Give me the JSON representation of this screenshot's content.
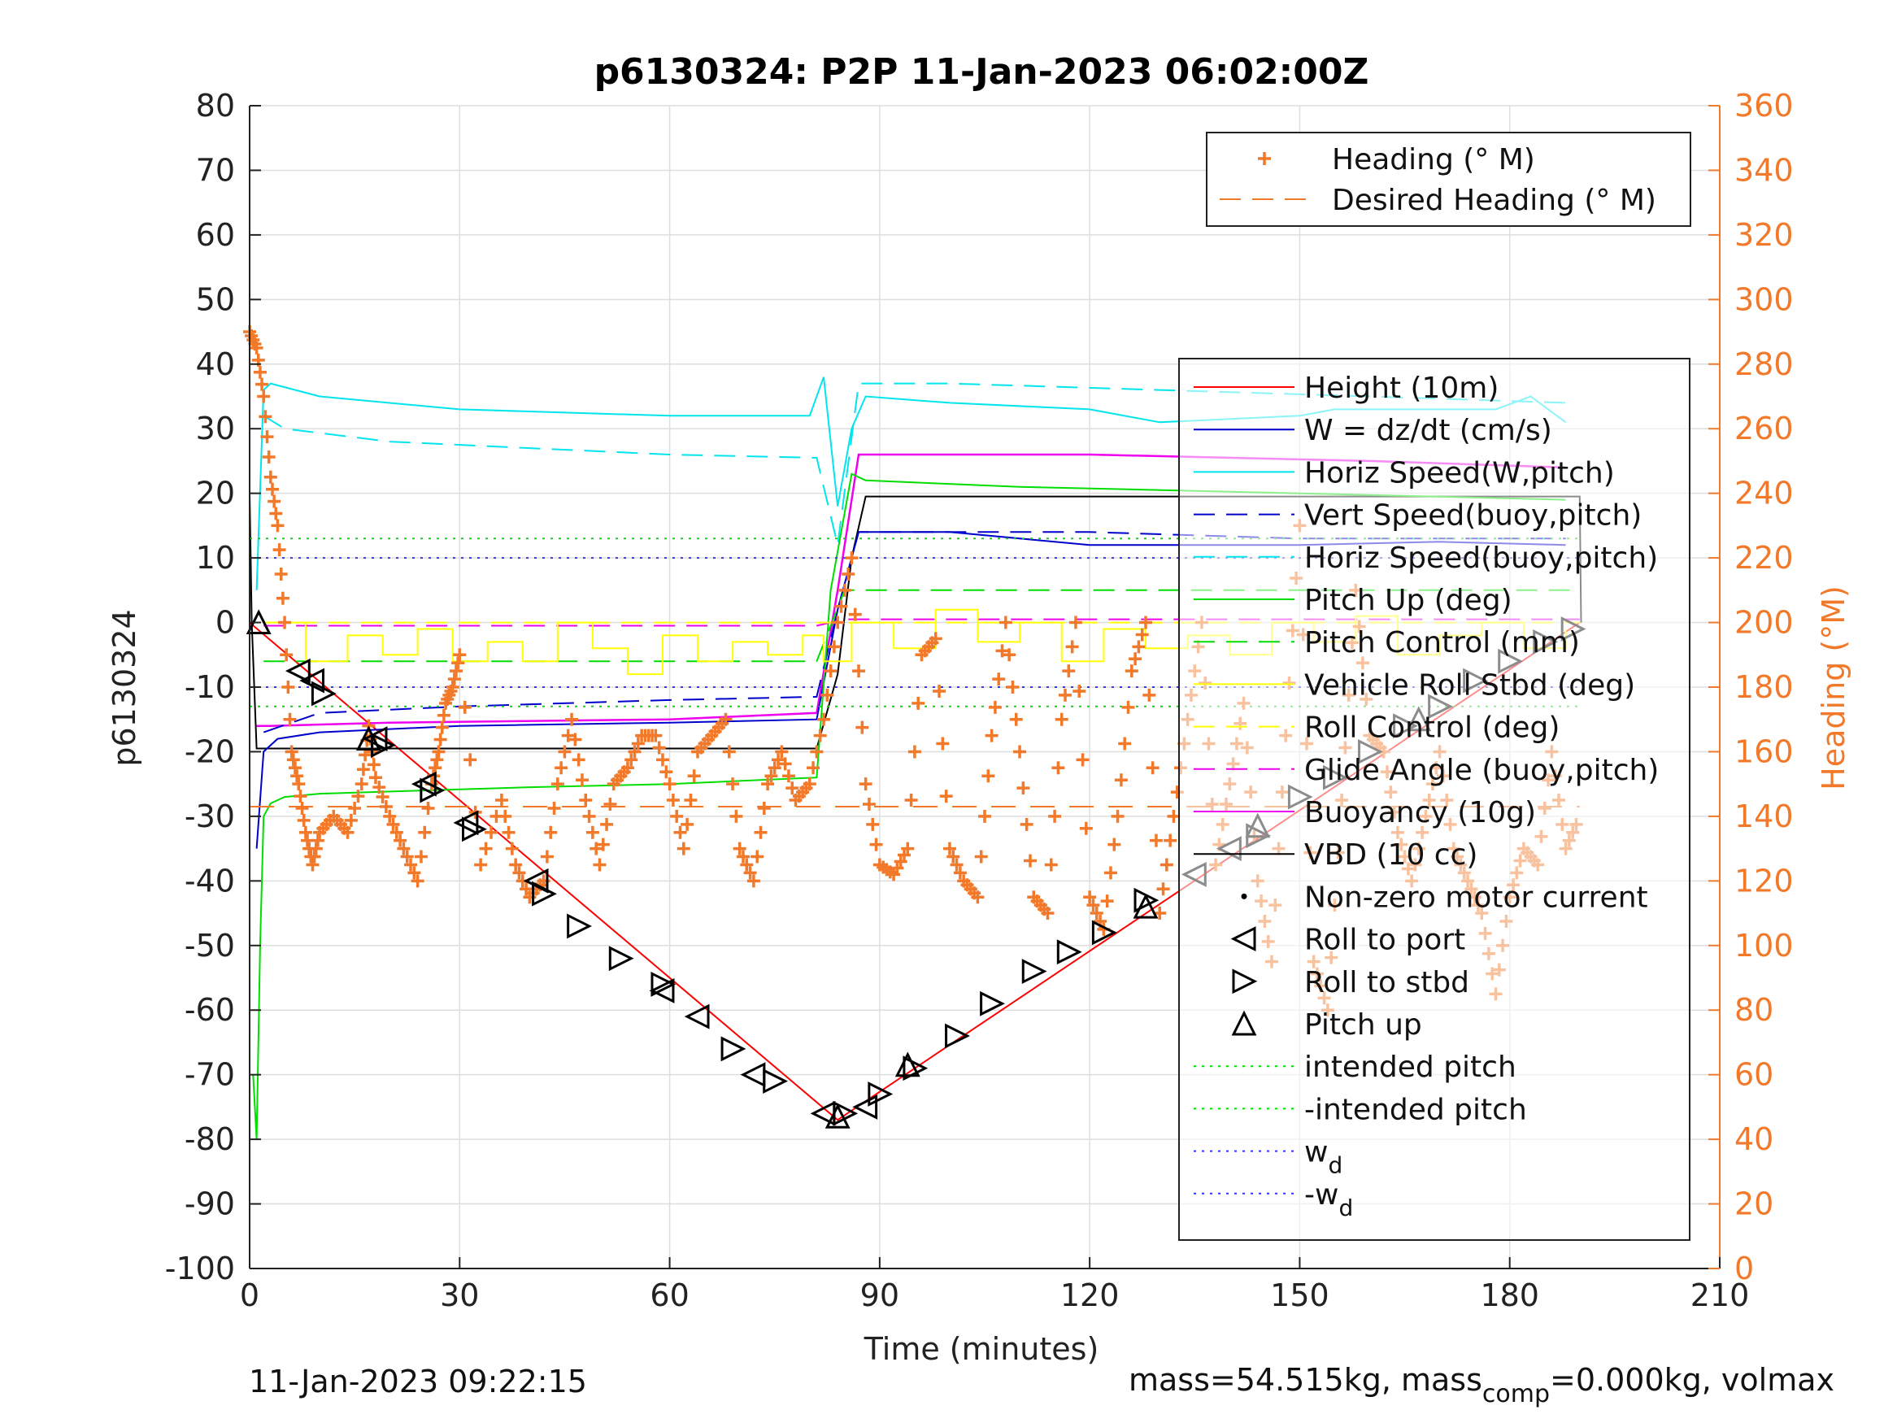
{
  "title": "p6130324: P2P 11-Jan-2023 06:02:00Z",
  "footer_left": "11-Jan-2023 09:22:15",
  "footer_right_parts": [
    "mass=54.515kg, mass",
    "comp",
    "=0.000kg, volmax"
  ],
  "colors": {
    "heading": "#f2792a",
    "height": "#ff0000",
    "w": "#0000cc",
    "horiz": "#00e5ee",
    "pitch": "#00dd00",
    "roll": "#ffff00",
    "glide": "#ee00ee",
    "vbd": "#000000",
    "wd": "#3333ff"
  },
  "chart_data": {
    "type": "line",
    "title": "p6130324: P2P 11-Jan-2023 06:02:00Z",
    "xlabel": "Time (minutes)",
    "ylabel": "p6130324",
    "y2label": "Heading (°M)",
    "xlim": [
      0,
      210
    ],
    "ylim": [
      -100,
      80
    ],
    "y2lim": [
      0,
      360
    ],
    "xticks": [
      0,
      30,
      60,
      90,
      120,
      150,
      180,
      210
    ],
    "yticks": [
      -100,
      -90,
      -80,
      -70,
      -60,
      -50,
      -40,
      -30,
      -20,
      -10,
      0,
      10,
      20,
      30,
      40,
      50,
      60,
      70,
      80
    ],
    "y2ticks": [
      0,
      20,
      40,
      60,
      80,
      100,
      120,
      140,
      160,
      180,
      200,
      220,
      240,
      260,
      280,
      300,
      320,
      340,
      360
    ],
    "grid": true,
    "legend_heading": [
      {
        "label": "Heading (° M)",
        "style": "plus",
        "color": "#f2792a"
      },
      {
        "label": "Desired Heading (° M)",
        "style": "dash",
        "color": "#f2792a"
      }
    ],
    "legend_main": [
      {
        "label": "Height (10m)",
        "style": "solid",
        "color": "#ff0000"
      },
      {
        "label": "W = dz/dt (cm/s)",
        "style": "solid",
        "color": "#0000cc"
      },
      {
        "label": "Horiz Speed(W,pitch)",
        "style": "solid",
        "color": "#00e5ee"
      },
      {
        "label": "Vert Speed(buoy,pitch)",
        "style": "dash",
        "color": "#0000cc"
      },
      {
        "label": "Horiz Speed(buoy,pitch)",
        "style": "dash",
        "color": "#00e5ee"
      },
      {
        "label": "Pitch Up (deg)",
        "style": "solid",
        "color": "#00dd00"
      },
      {
        "label": "Pitch Control (mm)",
        "style": "dash",
        "color": "#00dd00"
      },
      {
        "label": "Vehicle Roll Stbd (deg)",
        "style": "solid",
        "color": "#ffff00"
      },
      {
        "label": "Roll Control (deg)",
        "style": "dash",
        "color": "#ffff00"
      },
      {
        "label": "Glide Angle (buoy,pitch)",
        "style": "dash",
        "color": "#ee00ee"
      },
      {
        "label": "Buoyancy (10g)",
        "style": "solid",
        "color": "#ee00ee"
      },
      {
        "label": "VBD (10 cc)",
        "style": "solid",
        "color": "#000000"
      },
      {
        "label": "Non-zero motor current",
        "style": "dot",
        "color": "#000000"
      },
      {
        "label": "Roll to port",
        "style": "tri-left",
        "color": "#000000"
      },
      {
        "label": "Roll to stbd",
        "style": "tri-right",
        "color": "#000000"
      },
      {
        "label": "Pitch up",
        "style": "tri-up",
        "color": "#000000"
      },
      {
        "label": "intended pitch",
        "style": "dotted",
        "color": "#00dd00"
      },
      {
        "label": "-intended pitch",
        "style": "dotted",
        "color": "#00dd00"
      },
      {
        "label": "w",
        "sub": "d",
        "style": "dotted",
        "color": "#3333ff"
      },
      {
        "label": "-w",
        "sub": "d",
        "style": "dotted",
        "color": "#3333ff"
      }
    ],
    "series": [
      {
        "name": "Height (10m)",
        "axis": "left",
        "x": [
          0,
          84,
          190
        ],
        "y": [
          0,
          -77,
          0
        ]
      },
      {
        "name": "VBD (10 cc)",
        "axis": "left",
        "x": [
          0,
          0.3,
          1,
          81,
          84,
          86,
          88,
          190,
          190.2
        ],
        "y": [
          20,
          0,
          -19.5,
          -19.5,
          -8,
          10,
          19.5,
          19.5,
          0
        ]
      },
      {
        "name": "Buoyancy (10g)",
        "axis": "left",
        "x": [
          1,
          3,
          20,
          60,
          81,
          84,
          87,
          120,
          160,
          188
        ],
        "y": [
          -16,
          -16,
          -15.5,
          -15,
          -14,
          5,
          26,
          26,
          25,
          24
        ]
      },
      {
        "name": "W = dz/dt (cm/s)",
        "axis": "left",
        "x": [
          1,
          2,
          4,
          10,
          30,
          60,
          81,
          84,
          87,
          100,
          120,
          150,
          170,
          188
        ],
        "y": [
          -35,
          -20,
          -18,
          -17,
          -16,
          -15.5,
          -15,
          2,
          14,
          14,
          12,
          12,
          12.5,
          12
        ]
      },
      {
        "name": "Vert Speed(buoy,pitch)",
        "axis": "left",
        "x": [
          2,
          10,
          30,
          60,
          81,
          84,
          87,
          120,
          150,
          188
        ],
        "y": [
          -17,
          -14,
          -13,
          -12,
          -11.5,
          2,
          14,
          14,
          13,
          13
        ]
      },
      {
        "name": "Horiz Speed(W,pitch)",
        "axis": "left",
        "x": [
          1,
          2,
          3,
          10,
          30,
          60,
          80,
          82,
          84,
          86,
          88,
          100,
          120,
          130,
          150,
          155,
          170,
          178,
          183,
          188
        ],
        "y": [
          5,
          36,
          37,
          35,
          33,
          32,
          32,
          38,
          18,
          30,
          35,
          34,
          33,
          31,
          32,
          33,
          33,
          33,
          35,
          31
        ]
      },
      {
        "name": "Horiz Speed(buoy,pitch)",
        "axis": "left",
        "x": [
          2,
          5,
          20,
          40,
          60,
          81,
          84,
          87,
          100,
          130,
          160,
          188
        ],
        "y": [
          32,
          30,
          28,
          27,
          26,
          25.5,
          12,
          37,
          37,
          36,
          35,
          34
        ]
      },
      {
        "name": "Pitch Up (deg)",
        "axis": "left",
        "x": [
          0.5,
          1,
          1.5,
          2,
          3,
          5,
          10,
          40,
          60,
          81,
          83,
          86,
          88,
          110,
          150,
          188
        ],
        "y": [
          -70,
          -80,
          -50,
          -30,
          -28,
          -27,
          -26.5,
          -25.5,
          -25,
          -24,
          5,
          23,
          22,
          21,
          20,
          19
        ]
      },
      {
        "name": "Pitch Control (mm)",
        "axis": "left",
        "x": [
          2,
          81,
          85,
          190
        ],
        "y": [
          -6,
          -6,
          5,
          5
        ]
      },
      {
        "name": "Glide Angle (buoy,pitch)",
        "axis": "left",
        "x": [
          2,
          81,
          85,
          190
        ],
        "y": [
          -0.5,
          -0.5,
          0.5,
          0.5
        ]
      },
      {
        "name": "Vehicle Roll Stbd (deg)",
        "axis": "left",
        "x": [
          2,
          8,
          14,
          19,
          24,
          29,
          34,
          39,
          44,
          49,
          54,
          59,
          64,
          69,
          74,
          79,
          82,
          86,
          92,
          98,
          104,
          110,
          116,
          122,
          128,
          134,
          140,
          146,
          152,
          158,
          164,
          170,
          176,
          182,
          188
        ],
        "y": [
          0,
          -6,
          -2,
          -5,
          -1,
          -6,
          -3,
          -6,
          0,
          -4,
          -8,
          -2,
          -6,
          -3,
          -5,
          -2,
          -6,
          0,
          -4,
          2,
          -3,
          0,
          -6,
          -1,
          -4,
          -2,
          -5,
          0,
          -3,
          1,
          -5,
          -2,
          0,
          -4,
          -1
        ]
      },
      {
        "name": "Roll Control (deg)",
        "axis": "left",
        "x": [
          2,
          190
        ],
        "y": [
          0,
          0
        ]
      },
      {
        "name": "intended pitch",
        "axis": "left",
        "x": [
          0,
          190
        ],
        "y": [
          13,
          13
        ]
      },
      {
        "name": "-intended pitch",
        "axis": "left",
        "x": [
          0,
          190
        ],
        "y": [
          -13,
          -13
        ]
      },
      {
        "name": "w_d",
        "axis": "left",
        "x": [
          0,
          190
        ],
        "y": [
          10,
          10
        ]
      },
      {
        "name": "-w_d",
        "axis": "left",
        "x": [
          0,
          190
        ],
        "y": [
          -10,
          -10
        ]
      },
      {
        "name": "Desired Heading (° M)",
        "axis": "right",
        "x": [
          0,
          190
        ],
        "y": [
          143,
          143
        ]
      },
      {
        "name": "Heading (° M)",
        "axis": "right",
        "x": [
          0,
          1,
          2,
          3,
          4,
          5,
          6,
          7,
          8,
          9,
          10,
          12,
          14,
          16,
          17,
          18,
          20,
          22,
          24,
          26,
          27,
          28,
          29,
          30,
          33,
          36,
          38,
          40,
          42,
          44,
          46,
          48,
          50,
          52,
          54,
          56,
          58,
          60,
          62,
          64,
          66,
          68,
          70,
          72,
          74,
          76,
          78,
          80,
          82,
          84,
          86,
          88,
          90,
          92,
          94,
          96,
          98,
          100,
          102,
          104,
          106,
          108,
          110,
          112,
          114,
          116,
          118,
          120,
          122,
          124,
          126,
          128,
          130,
          132,
          134,
          136,
          138,
          140,
          142,
          144,
          146,
          148,
          150,
          152,
          154,
          156,
          158,
          160,
          162,
          164,
          166,
          168,
          170,
          172,
          174,
          176,
          178,
          180,
          182,
          184,
          186,
          188,
          190
        ],
        "y": [
          290,
          285,
          270,
          245,
          230,
          200,
          160,
          150,
          135,
          125,
          135,
          140,
          135,
          150,
          168,
          152,
          140,
          130,
          120,
          150,
          160,
          175,
          180,
          190,
          125,
          145,
          125,
          115,
          120,
          150,
          170,
          145,
          125,
          150,
          155,
          165,
          165,
          150,
          130,
          160,
          165,
          170,
          130,
          120,
          150,
          160,
          145,
          150,
          170,
          200,
          220,
          150,
          125,
          122,
          130,
          190,
          195,
          130,
          120,
          115,
          165,
          200,
          160,
          115,
          110,
          170,
          200,
          115,
          105,
          140,
          185,
          200,
          110,
          140,
          170,
          200,
          125,
          150,
          175,
          120,
          95,
          165,
          230,
          95,
          80,
          145,
          210,
          165,
          160,
          135,
          120,
          140,
          160,
          130,
          120,
          110,
          85,
          115,
          130,
          125,
          160,
          130,
          140
        ]
      },
      {
        "name": "Roll to port",
        "axis": "left",
        "x": [
          7,
          9,
          18,
          25,
          31,
          41,
          59,
          64,
          72,
          82,
          88,
          135,
          140
        ],
        "y": [
          -7.5,
          -9,
          -18,
          -25,
          -31,
          -40,
          -57,
          -61,
          -70,
          -76,
          -75,
          -39,
          -35
        ]
      },
      {
        "name": "Roll to stbd",
        "axis": "left",
        "x": [
          10.5,
          19,
          26,
          32,
          42,
          47,
          53,
          59,
          69,
          75,
          85,
          90,
          95,
          101,
          106,
          112,
          117,
          122,
          128,
          144,
          150,
          155,
          160,
          165,
          170,
          175,
          180,
          185,
          189
        ],
        "y": [
          -11,
          -19,
          -26,
          -32,
          -42,
          -47,
          -52,
          -56,
          -66,
          -71,
          -76,
          -73,
          -69,
          -64,
          -59,
          -54,
          -51,
          -48,
          -43,
          -33,
          -27,
          -24,
          -20,
          -16,
          -13,
          -9,
          -6,
          -3,
          -1
        ]
      },
      {
        "name": "Pitch up",
        "axis": "left",
        "x": [
          1.3,
          17,
          84,
          94,
          128,
          144,
          167
        ],
        "y": [
          0,
          -18,
          -76.5,
          -68.5,
          -44,
          -31.5,
          -15
        ]
      }
    ]
  }
}
